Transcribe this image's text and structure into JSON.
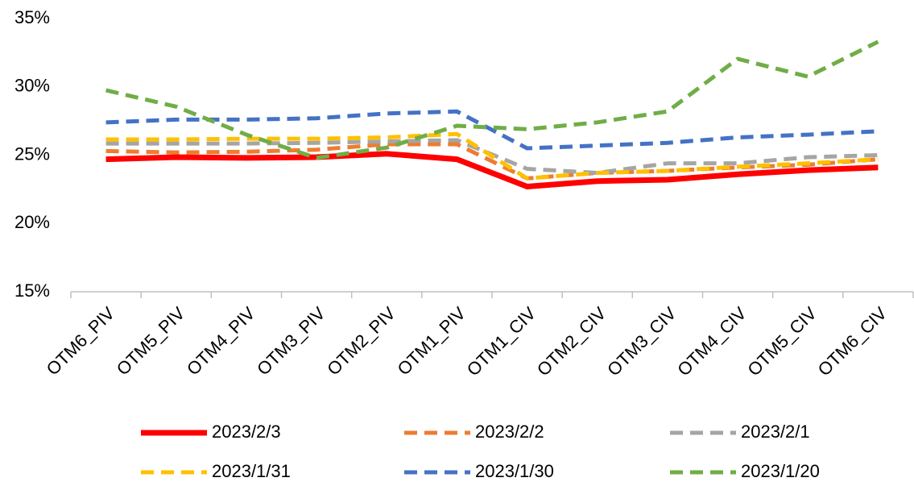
{
  "chart_data": {
    "type": "line",
    "categories": [
      "OTM6_PIV",
      "OTM5_PIV",
      "OTM4_PIV",
      "OTM3_PIV",
      "OTM2_PIV",
      "OTM1_PIV",
      "OTM1_CIV",
      "OTM2_CIV",
      "OTM3_CIV",
      "OTM4_CIV",
      "OTM5_CIV",
      "OTM6_CIV"
    ],
    "series": [
      {
        "name": "2023/2/3",
        "color": "#ff0000",
        "values": [
          24.7,
          24.85,
          24.8,
          24.85,
          25.1,
          24.7,
          22.7,
          23.1,
          23.2,
          23.6,
          23.9,
          24.1
        ]
      },
      {
        "name": "2023/2/2",
        "color": "#ed7d31",
        "values": [
          25.3,
          25.2,
          25.25,
          25.4,
          25.8,
          25.8,
          23.3,
          23.7,
          23.85,
          24.1,
          24.3,
          24.7
        ]
      },
      {
        "name": "2023/2/1",
        "color": "#a5a5a5",
        "values": [
          25.85,
          25.85,
          25.85,
          25.9,
          26.0,
          26.1,
          24.0,
          23.7,
          24.4,
          24.4,
          24.85,
          25.0
        ]
      },
      {
        "name": "2023/1/31",
        "color": "#ffc000",
        "values": [
          26.15,
          26.15,
          26.2,
          26.2,
          26.3,
          26.55,
          23.3,
          23.7,
          23.85,
          24.15,
          24.4,
          24.7
        ]
      },
      {
        "name": "2023/1/30",
        "color": "#4472c4",
        "values": [
          27.4,
          27.6,
          27.6,
          27.7,
          28.05,
          28.2,
          25.5,
          25.7,
          25.9,
          26.3,
          26.5,
          26.75
        ]
      },
      {
        "name": "2023/1/20",
        "color": "#70ad47",
        "values": [
          29.75,
          28.55,
          26.5,
          24.8,
          25.55,
          27.15,
          26.9,
          27.4,
          28.2,
          32.05,
          30.75,
          33.3
        ]
      }
    ],
    "ylim": [
      15,
      35
    ],
    "yticks": [
      {
        "value": 15,
        "label": "15%"
      },
      {
        "value": 20,
        "label": "20%"
      },
      {
        "value": 25,
        "label": "25%"
      },
      {
        "value": 30,
        "label": "30%"
      },
      {
        "value": 35,
        "label": "35%"
      }
    ],
    "grid": false
  }
}
